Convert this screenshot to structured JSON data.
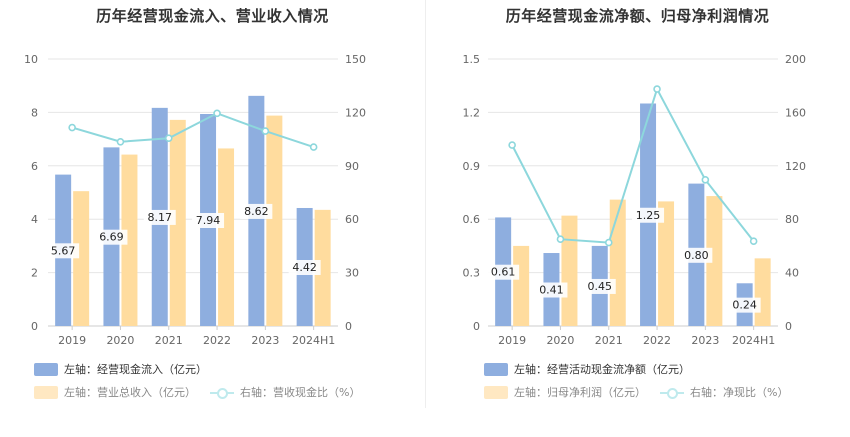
{
  "colors": {
    "bar_primary": "#8eaedf",
    "bar_secondary": "#ffdc9e",
    "line": "#8dd7dc",
    "axis_text": "#666666",
    "grid": "#e6e6e6"
  },
  "chart_data": [
    {
      "type": "bar",
      "title": "历年经营现金流入、营业收入情况",
      "categories": [
        "2019",
        "2020",
        "2021",
        "2022",
        "2023",
        "2024H1"
      ],
      "y_left": {
        "min": 0,
        "max": 10,
        "ticks": [
          "0",
          "2",
          "4",
          "6",
          "8",
          "10"
        ]
      },
      "y_right": {
        "min": 0,
        "max": 150,
        "ticks": [
          "0",
          "30",
          "60",
          "90",
          "120",
          "150"
        ]
      },
      "series": [
        {
          "name": "左轴：经营现金流入（亿元）",
          "kind": "bar",
          "axis": "left",
          "color": "#8eaedf",
          "values": [
            5.67,
            6.69,
            8.17,
            7.94,
            8.62,
            4.42
          ],
          "labels": [
            "5.67",
            "6.69",
            "8.17",
            "7.94",
            "8.62",
            "4.42"
          ]
        },
        {
          "name": "左轴：营业总收入（亿元）",
          "kind": "bar",
          "axis": "left",
          "color": "#ffdc9e",
          "values": [
            5.05,
            6.42,
            7.72,
            6.65,
            7.88,
            4.35
          ]
        },
        {
          "name": "右轴：营收现金比（%）",
          "kind": "line",
          "axis": "right",
          "color": "#8dd7dc",
          "values": [
            111.5,
            103.5,
            105.5,
            119.5,
            109.5,
            100.5
          ]
        }
      ]
    },
    {
      "type": "bar",
      "title": "历年经营现金流净额、归母净利润情况",
      "categories": [
        "2019",
        "2020",
        "2021",
        "2022",
        "2023",
        "2024H1"
      ],
      "y_left": {
        "min": 0,
        "max": 1.5,
        "ticks": [
          "0",
          "0.3",
          "0.6",
          "0.9",
          "1.2",
          "1.5"
        ]
      },
      "y_right": {
        "min": 0,
        "max": 200,
        "ticks": [
          "0",
          "40",
          "80",
          "120",
          "160",
          "200"
        ]
      },
      "series": [
        {
          "name": "左轴：经营活动现金流净额（亿元）",
          "kind": "bar",
          "axis": "left",
          "color": "#8eaedf",
          "values": [
            0.61,
            0.41,
            0.45,
            1.25,
            0.8,
            0.24
          ],
          "labels": [
            "0.61",
            "0.41",
            "0.45",
            "1.25",
            "0.80",
            "0.24"
          ]
        },
        {
          "name": "左轴：归母净利润（亿元）",
          "kind": "bar",
          "axis": "left",
          "color": "#ffdc9e",
          "values": [
            0.45,
            0.62,
            0.71,
            0.7,
            0.73,
            0.38
          ]
        },
        {
          "name": "右轴：净现比（%）",
          "kind": "line",
          "axis": "right",
          "color": "#8dd7dc",
          "values": [
            135.5,
            65.0,
            62.5,
            177.5,
            109.5,
            63.5
          ]
        }
      ]
    }
  ]
}
